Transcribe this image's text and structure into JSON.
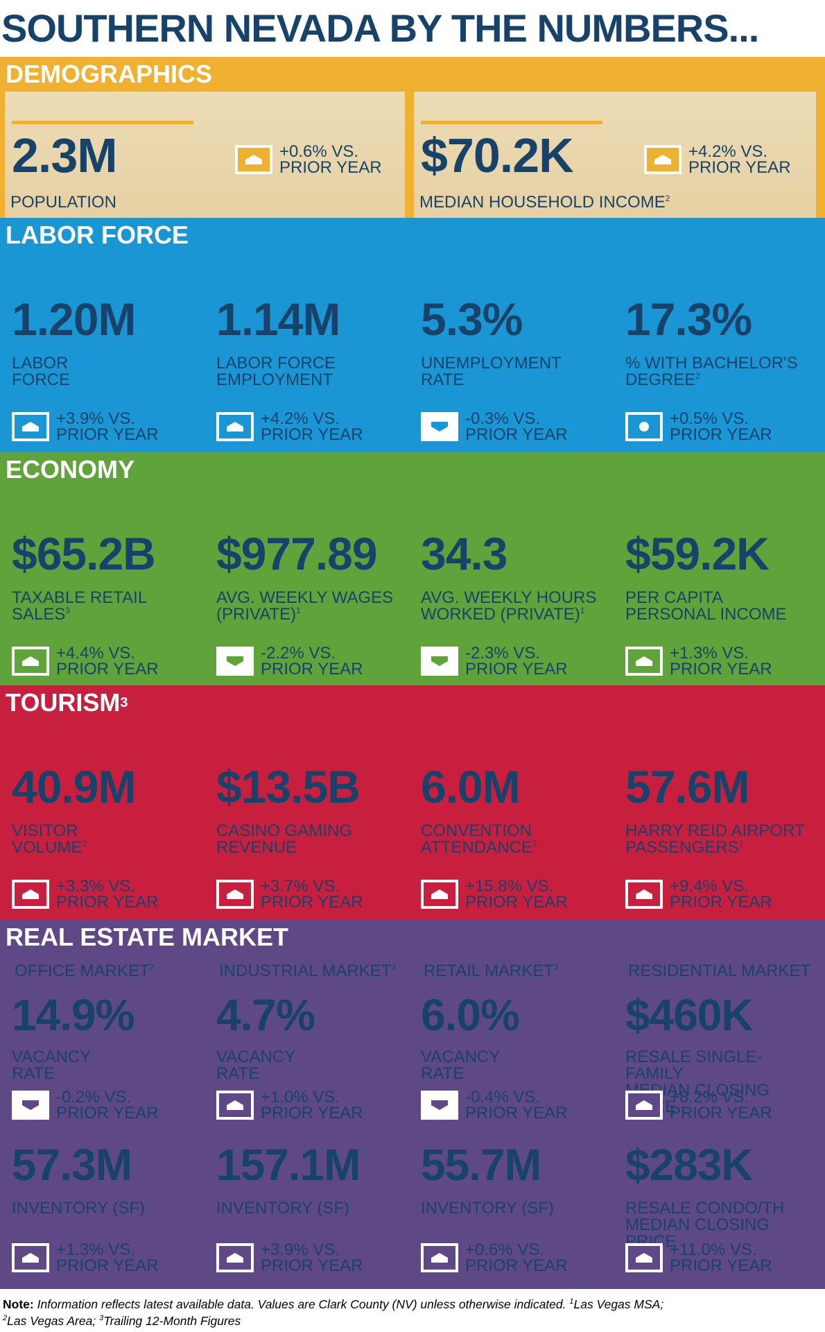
{
  "title": "SOUTHERN NEVADA BY THE NUMBERS...",
  "vs_prior": "VS.\nPRIOR YEAR",
  "sections": {
    "demographics": {
      "title": "DEMOGRAPHICS",
      "color": "#f0b030",
      "items": [
        {
          "value": "2.3M",
          "label": "POPULATION",
          "sup": "",
          "change": "+0.6% VS.\nPRIOR YEAR",
          "dir": "up"
        },
        {
          "value": "$70.2K",
          "label": "MEDIAN HOUSEHOLD INCOME",
          "sup": "2",
          "change": "+4.2% VS.\nPRIOR YEAR",
          "dir": "up"
        }
      ]
    },
    "labor": {
      "title": "LABOR FORCE",
      "color": "#1a96d4",
      "items": [
        {
          "value": "1.20M",
          "label": "LABOR\nFORCE",
          "sup": "",
          "change": "+3.9% VS.\nPRIOR YEAR",
          "dir": "up"
        },
        {
          "value": "1.14M",
          "label": "LABOR FORCE\nEMPLOYMENT",
          "sup": "",
          "change": "+4.2% VS.\nPRIOR YEAR",
          "dir": "up"
        },
        {
          "value": "5.3%",
          "label": "UNEMPLOYMENT\nRATE",
          "sup": "",
          "change": "-0.3% VS.\nPRIOR YEAR",
          "dir": "down"
        },
        {
          "value": "17.3%",
          "label": "% WITH BACHELOR'S\nDEGREE",
          "sup": "2",
          "change": "+0.5% VS.\nPRIOR YEAR",
          "dir": "dot"
        }
      ]
    },
    "economy": {
      "title": "ECONOMY",
      "color": "#5fa33a",
      "items": [
        {
          "value": "$65.2B",
          "label": "TAXABLE RETAIL\nSALES",
          "sup": "3",
          "change": "+4.4% VS.\nPRIOR YEAR",
          "dir": "up"
        },
        {
          "value": "$977.89",
          "label": "AVG. WEEKLY WAGES\n(PRIVATE)",
          "sup": "1",
          "change": "-2.2% VS.\nPRIOR YEAR",
          "dir": "down"
        },
        {
          "value": "34.3",
          "label": "AVG. WEEKLY HOURS\nWORKED (PRIVATE)",
          "sup": "1",
          "change": "-2.3% VS.\nPRIOR YEAR",
          "dir": "down"
        },
        {
          "value": "$59.2K",
          "label": "PER CAPITA\nPERSONAL INCOME",
          "sup": "",
          "change": "+1.3% VS.\nPRIOR YEAR",
          "dir": "up"
        }
      ]
    },
    "tourism": {
      "title": "TOURISM",
      "title_sup": "3",
      "color": "#c91f3f",
      "items": [
        {
          "value": "40.9M",
          "label": "VISITOR\nVOLUME",
          "sup": "2",
          "change": "+3.3% VS.\nPRIOR YEAR",
          "dir": "up"
        },
        {
          "value": "$13.5B",
          "label": "CASINO GAMING\nREVENUE",
          "sup": "",
          "change": "+3.7% VS.\nPRIOR YEAR",
          "dir": "up"
        },
        {
          "value": "6.0M",
          "label": "CONVENTION\nATTENDANCE",
          "sup": "2",
          "change": "+15.8% VS.\nPRIOR YEAR",
          "dir": "up"
        },
        {
          "value": "57.6M",
          "label": "HARRY REID AIRPORT\nPASSENGERS",
          "sup": "1",
          "change": "+9.4% VS.\nPRIOR YEAR",
          "dir": "up"
        }
      ]
    },
    "realestate": {
      "title": "REAL ESTATE MARKET",
      "color": "#5f4886",
      "items": [
        {
          "head": "OFFICE MARKET",
          "head_sup": "2",
          "value": "14.9%",
          "label": "VACANCY\nRATE",
          "change": "-0.2% VS.\nPRIOR YEAR",
          "dir": "down",
          "value2": "57.3M",
          "label2": "INVENTORY (SF)",
          "change2": "+1.3% VS.\nPRIOR YEAR",
          "dir2": "up"
        },
        {
          "head": "INDUSTRIAL MARKET",
          "head_sup": "2",
          "value": "4.7%",
          "label": "VACANCY\nRATE",
          "change": "+1.0% VS.\nPRIOR YEAR",
          "dir": "up",
          "value2": "157.1M",
          "label2": "INVENTORY (SF)",
          "change2": "+3.9% VS.\nPRIOR YEAR",
          "dir2": "up"
        },
        {
          "head": "RETAIL MARKET",
          "head_sup": "2",
          "value": "6.0%",
          "label": "VACANCY\nRATE",
          "change": "-0.4% VS.\nPRIOR YEAR",
          "dir": "down",
          "value2": "55.7M",
          "label2": "INVENTORY (SF)",
          "change2": "+0.6% VS.\nPRIOR YEAR",
          "dir2": "up"
        },
        {
          "head": "RESIDENTIAL MARKET",
          "head_sup": "",
          "value": "$460K",
          "label": "RESALE SINGLE-FAMILY\nMEDIAN CLOSING PRICE",
          "change": "+8.2% VS.\nPRIOR YEAR",
          "dir": "up",
          "value2": "$283K",
          "label2": "RESALE CONDO/TH\nMEDIAN CLOSING PRICE",
          "change2": "+11.0% VS.\nPRIOR YEAR",
          "dir2": "up"
        }
      ]
    }
  },
  "note": {
    "lead": "Note:",
    "text": " Information reflects latest available data. Values are Clark County (NV) unless otherwise indicated. ",
    "fn1_mark": "1",
    "fn1": "Las Vegas MSA; ",
    "fn2_mark": "2",
    "fn2": "Las Vegas Area; ",
    "fn3_mark": "3",
    "fn3": "Trailing 12-Month Figures"
  }
}
